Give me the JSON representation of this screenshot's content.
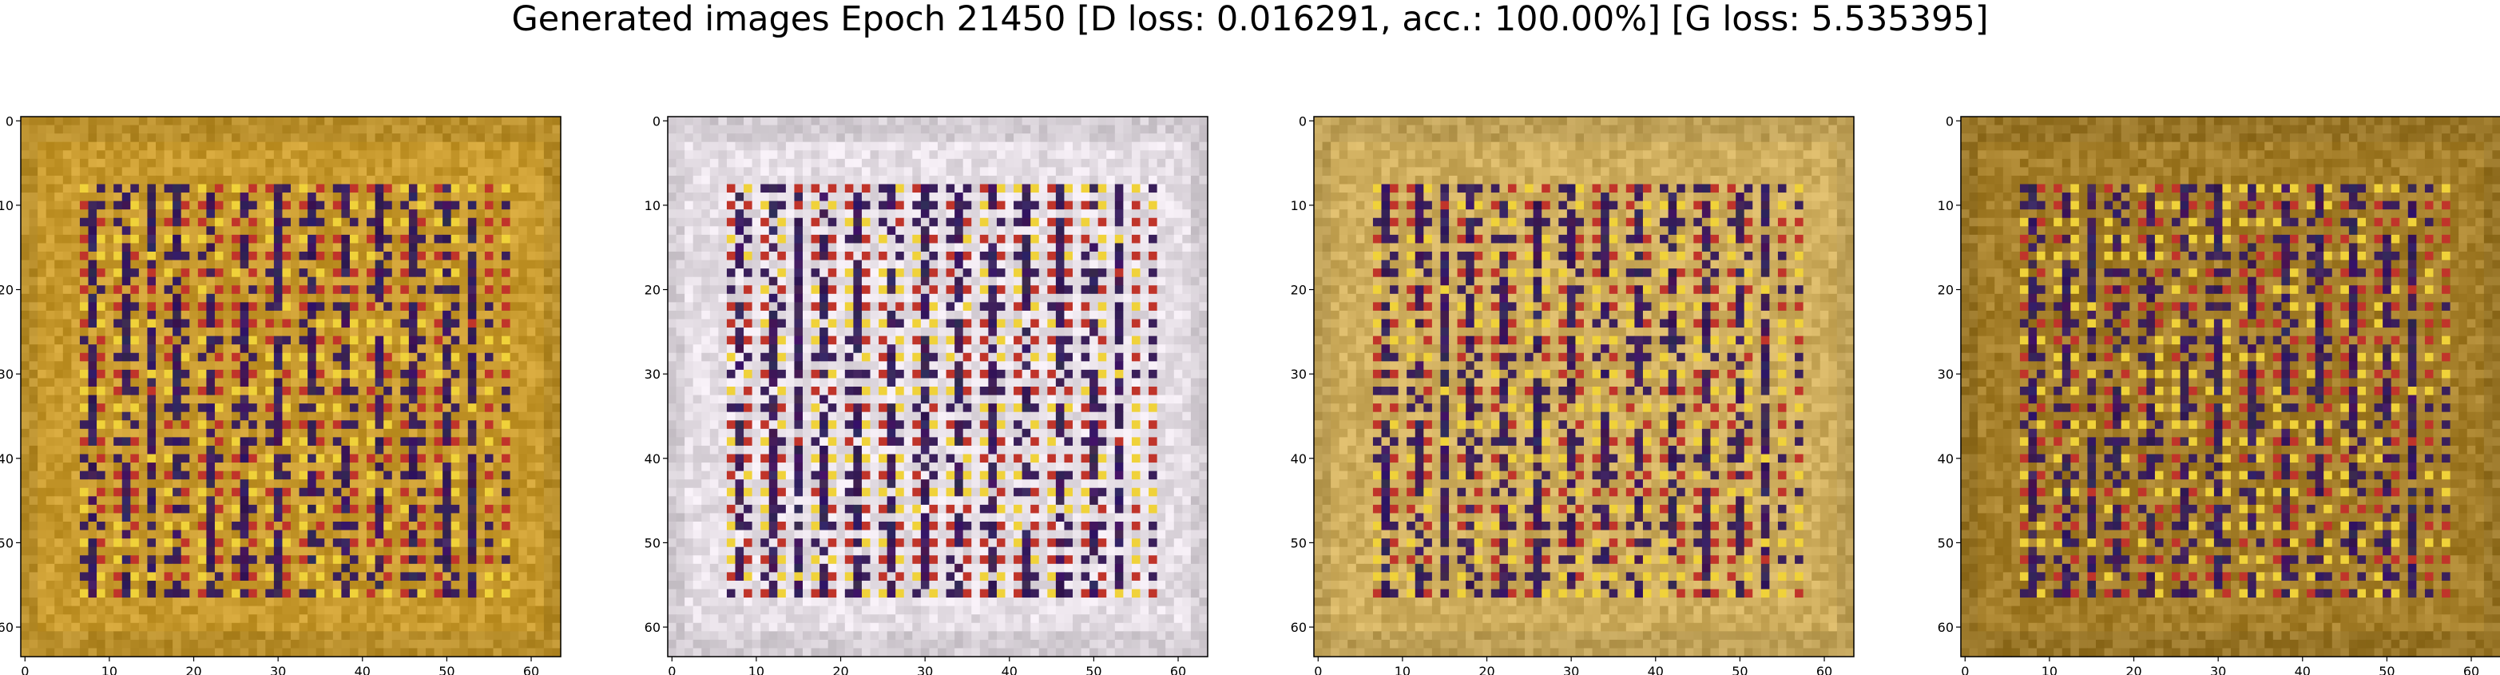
{
  "figure": {
    "title": "Generated images Epoch 21450 [D loss: 0.016291, acc.: 100.00%] [G loss: 5.535395]"
  },
  "colors": {
    "gold": "#c89a2e",
    "pale": "#e6dfe6",
    "mixed": "#cfae5e",
    "dark_gold": "#a57f2a",
    "grid_dot_red": "#c0342a",
    "grid_dot_yellow": "#f0d23a",
    "stripe_purple": "#3a1f5a"
  },
  "chart_data": [
    {
      "type": "heatmap",
      "content": "generated 64x64 RGB image, golden tone with dark vertical stripes and red/yellow dot lattice",
      "palette": "gold",
      "x_ticks": [
        0,
        10,
        20,
        30,
        40,
        50,
        60
      ],
      "y_ticks": [
        0,
        10,
        20,
        30,
        40,
        50,
        60
      ],
      "xlim": [
        -0.5,
        63.5
      ],
      "ylim": [
        63.5,
        -0.5
      ]
    },
    {
      "type": "heatmap",
      "content": "generated 64x64 RGB image, pale whitish-pink tone with dark dot lattice",
      "palette": "pale",
      "x_ticks": [
        0,
        10,
        20,
        30,
        40,
        50,
        60
      ],
      "y_ticks": [
        0,
        10,
        20,
        30,
        40,
        50,
        60
      ],
      "xlim": [
        -0.5,
        63.5
      ],
      "ylim": [
        63.5,
        -0.5
      ]
    },
    {
      "type": "heatmap",
      "content": "generated 64x64 RGB image, mixed gold and pale tones with dot lattice",
      "palette": "mixed",
      "x_ticks": [
        0,
        10,
        20,
        30,
        40,
        50,
        60
      ],
      "y_ticks": [
        0,
        10,
        20,
        30,
        40,
        50,
        60
      ],
      "xlim": [
        -0.5,
        63.5
      ],
      "ylim": [
        63.5,
        -0.5
      ]
    },
    {
      "type": "heatmap",
      "content": "generated 64x64 RGB image, darker gold tone with dark vertical stripes and dot lattice",
      "palette": "dark_gold",
      "x_ticks": [
        0,
        10,
        20,
        30,
        40,
        50,
        60
      ],
      "y_ticks": [
        0,
        10,
        20,
        30,
        40,
        50,
        60
      ],
      "xlim": [
        -0.5,
        63.5
      ],
      "ylim": [
        63.5,
        -0.5
      ]
    }
  ]
}
